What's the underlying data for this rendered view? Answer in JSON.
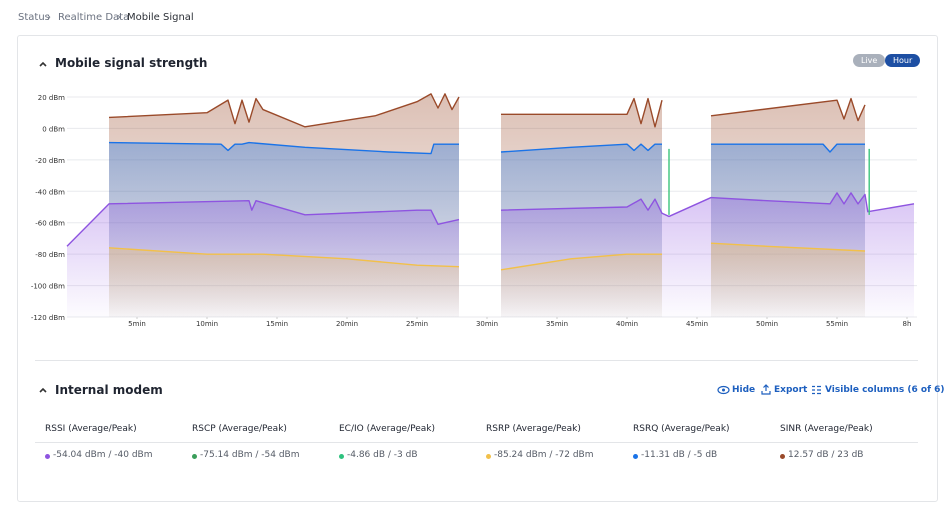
{
  "breadcrumb": [
    "Status",
    "Realtime Data",
    "Mobile Signal"
  ],
  "chart_section": {
    "title": "Mobile signal strength",
    "buttons": [
      "Live",
      "Hour"
    ]
  },
  "chart_data": {
    "type": "line",
    "xlim": [
      0,
      60.5
    ],
    "xticks": [
      {
        "value": 5,
        "label": "5min"
      },
      {
        "value": 10,
        "label": "10min"
      },
      {
        "value": 15,
        "label": "15min"
      },
      {
        "value": 20,
        "label": "20min"
      },
      {
        "value": 25,
        "label": "25min"
      },
      {
        "value": 30,
        "label": "30min"
      },
      {
        "value": 35,
        "label": "35min"
      },
      {
        "value": 40,
        "label": "40min"
      },
      {
        "value": 45,
        "label": "45min"
      },
      {
        "value": 50,
        "label": "50min"
      },
      {
        "value": 55,
        "label": "55min"
      },
      {
        "value": 60,
        "label": "8h"
      }
    ],
    "ylim": [
      -120,
      20
    ],
    "yticks": [
      {
        "value": 20,
        "label": "20 dBm"
      },
      {
        "value": 0,
        "label": "0 dBm"
      },
      {
        "value": -20,
        "label": "-20 dBm"
      },
      {
        "value": -40,
        "label": "-40 dBm"
      },
      {
        "value": -60,
        "label": "-60 dBm"
      },
      {
        "value": -80,
        "label": "-80 dBm"
      },
      {
        "value": -100,
        "label": "-100 dBm"
      },
      {
        "value": -120,
        "label": "-120 dBm"
      }
    ],
    "grid": true,
    "series": [
      {
        "color": "#9a4a2a",
        "x": [
          3,
          10,
          11.5,
          12,
          12.5,
          13,
          13.5,
          14,
          17,
          22,
          25,
          26,
          26.5,
          27,
          27.5,
          28,
          29,
          31,
          40,
          40.5,
          41,
          41.5,
          42,
          42.5,
          44,
          46,
          55,
          55.5,
          56,
          56.5,
          57
        ],
        "values": [
          7,
          10,
          18,
          3,
          18,
          4,
          19,
          12,
          1,
          8,
          17,
          22,
          13,
          22,
          12,
          20,
          null,
          9,
          9,
          19,
          3,
          19,
          1,
          18,
          null,
          8,
          18,
          6,
          19,
          5,
          15
        ]
      },
      {
        "color": "#1a73e8",
        "x": [
          3,
          11,
          11.5,
          12,
          12.5,
          13,
          17,
          23,
          26,
          26.2,
          28,
          29,
          31,
          36,
          40,
          40.5,
          41,
          41.5,
          42,
          42.5,
          44,
          46,
          54,
          54.5,
          55,
          57
        ],
        "values": [
          -9,
          -10,
          -14,
          -10,
          -10,
          -9,
          -12,
          -15,
          -16,
          -10,
          -10,
          null,
          -15,
          -12,
          -10,
          -14,
          -10,
          -14,
          -10,
          -10,
          null,
          -10,
          -10,
          -15,
          -10,
          -10
        ]
      },
      {
        "color": "#8e54e0",
        "x": [
          0,
          3,
          13,
          13.2,
          13.5,
          17,
          25,
          26,
          26.5,
          27,
          28,
          29,
          31,
          40,
          41,
          41.5,
          42,
          42.5,
          43,
          46,
          50,
          54.5,
          55,
          55.5,
          56,
          56.5,
          57,
          57.2,
          60.5
        ],
        "values": [
          -75,
          -48,
          -46,
          -52,
          -46,
          -55,
          -52,
          -52,
          -61,
          -60,
          -58,
          null,
          -52,
          -50,
          -45,
          -52,
          -45,
          -54,
          -56,
          -44,
          -46,
          -48,
          -41,
          -48,
          -41,
          -48,
          -42,
          -53,
          -48
        ]
      },
      {
        "color": "#f2c04a",
        "x": [
          3,
          10,
          14,
          20,
          25,
          28,
          29,
          31,
          36,
          40,
          42.5,
          44,
          46,
          50,
          57
        ],
        "values": [
          -76,
          -80,
          -80,
          -83,
          -87,
          -88,
          null,
          -90,
          -83,
          -80,
          -80,
          null,
          -73,
          -75,
          -78
        ]
      },
      {
        "color": "#3cc47c",
        "x": [
          43,
          43,
          50,
          57.3,
          57.3
        ],
        "values": [
          -55,
          -13,
          null,
          -55,
          -13
        ]
      }
    ]
  },
  "modem": {
    "title": "Internal modem",
    "actions": [
      "Hide",
      "Export",
      "Visible columns (6 of 6)"
    ],
    "columns": [
      {
        "header": "RSSI (Average/Peak)",
        "value": "-54.04 dBm / -40 dBm",
        "color": "#8e54e0"
      },
      {
        "header": "RSCP (Average/Peak)",
        "value": "-75.14 dBm / -54 dBm",
        "color": "#3a9e5a"
      },
      {
        "header": "EC/IO (Average/Peak)",
        "value": "-4.86 dB / -3 dB",
        "color": "#2ec27e"
      },
      {
        "header": "RSRP (Average/Peak)",
        "value": "-85.24 dBm / -72 dBm",
        "color": "#f2c04a"
      },
      {
        "header": "RSRQ (Average/Peak)",
        "value": "-11.31 dB / -5 dB",
        "color": "#1a73e8"
      },
      {
        "header": "SINR (Average/Peak)",
        "value": "12.57 dB / 23 dB",
        "color": "#9a4a2a"
      }
    ]
  }
}
